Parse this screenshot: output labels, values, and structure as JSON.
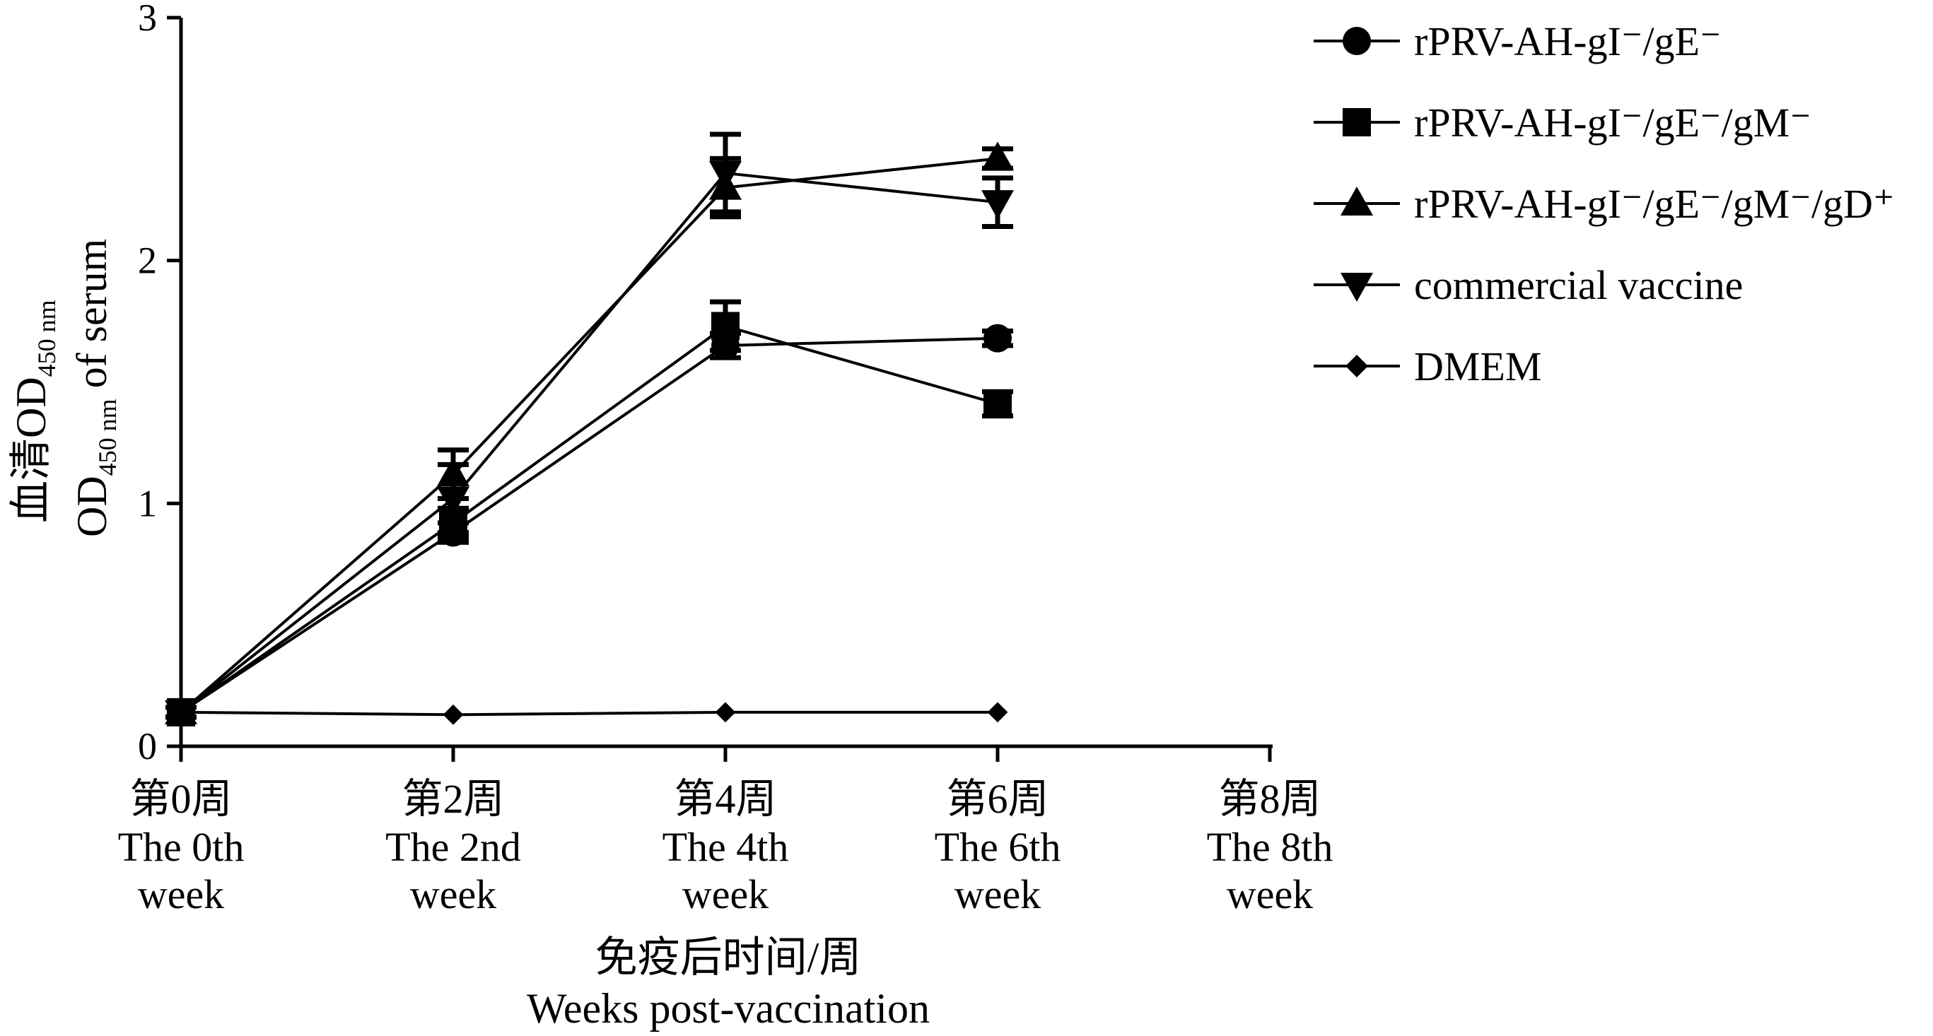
{
  "chart_data": {
    "type": "line",
    "title": "",
    "y_axis": {
      "label_zh": "血清OD",
      "label_zh_sub": "450 nm",
      "label_en": "OD",
      "label_en_sub": "450 nm",
      "label_en_suffix": " of serum",
      "ylim": [
        0,
        3
      ],
      "ticks": [
        "0",
        "1",
        "2",
        "3"
      ]
    },
    "x_axis": {
      "label_zh": "免疫后时间/周",
      "label_en": "Weeks post-vaccination",
      "categories": [
        {
          "zh": "第0周",
          "en1": "The 0th",
          "en2": "week"
        },
        {
          "zh": "第2周",
          "en1": "The 2nd",
          "en2": "week"
        },
        {
          "zh": "第4周",
          "en1": "The 4th",
          "en2": "week"
        },
        {
          "zh": "第6周",
          "en1": "The 6th",
          "en2": "week"
        },
        {
          "zh": "第8周",
          "en1": "The 8th",
          "en2": "week"
        }
      ],
      "x": [
        0,
        2,
        4,
        6,
        8
      ]
    },
    "series": [
      {
        "name": "rPRV-AH-gI⁻/gE⁻",
        "marker": "circle",
        "x": [
          0,
          2,
          4,
          6
        ],
        "values": [
          0.14,
          0.88,
          1.65,
          1.68
        ],
        "error": [
          0.02,
          0.04,
          0.05,
          0.03
        ]
      },
      {
        "name": "rPRV-AH-gI⁻/gE⁻/gM⁻",
        "marker": "square",
        "x": [
          0,
          2,
          4,
          6
        ],
        "values": [
          0.14,
          0.92,
          1.73,
          1.41
        ],
        "error": [
          0.02,
          0.06,
          0.1,
          0.05
        ]
      },
      {
        "name": "rPRV-AH-gI⁻/gE⁻/gM⁻/gD⁺",
        "marker": "triangle-up",
        "x": [
          0,
          2,
          4,
          6
        ],
        "values": [
          0.14,
          1.12,
          2.3,
          2.42
        ],
        "error": [
          0.02,
          0.1,
          0.12,
          0.04
        ]
      },
      {
        "name": "commercial vaccine",
        "marker": "triangle-down",
        "x": [
          0,
          2,
          4,
          6
        ],
        "values": [
          0.14,
          1.02,
          2.36,
          2.24
        ],
        "error": [
          0.02,
          0.14,
          0.16,
          0.1
        ]
      },
      {
        "name": "DMEM",
        "marker": "diamond",
        "x": [
          0,
          2,
          4,
          6
        ],
        "values": [
          0.14,
          0.13,
          0.14,
          0.14
        ],
        "error": [
          0.01,
          0.01,
          0.01,
          0.01
        ]
      }
    ],
    "legend_position": "top-right",
    "grid": false
  }
}
